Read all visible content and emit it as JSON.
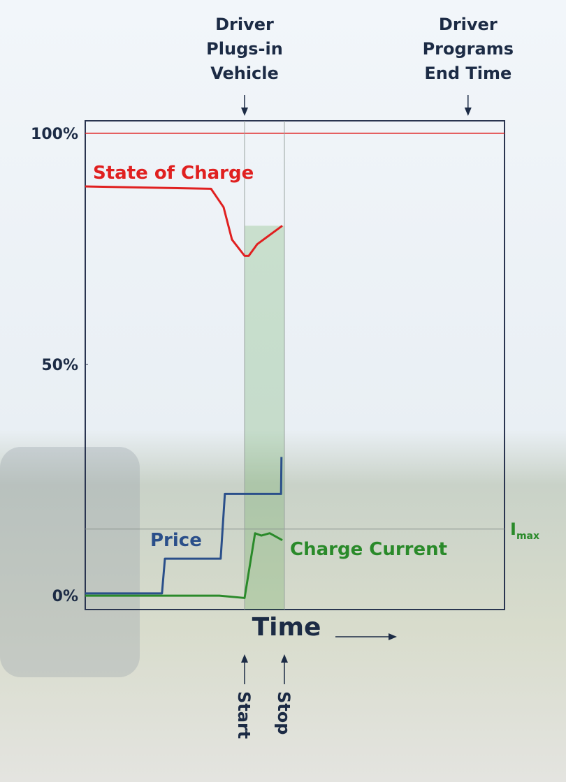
{
  "chart_data": {
    "type": "line",
    "xlim": [
      0,
      100
    ],
    "ylim": [
      -3,
      102.7
    ],
    "yticks": [
      {
        "value": 0,
        "label": "0%"
      },
      {
        "value": 50,
        "label": "50%"
      },
      {
        "value": 100,
        "label": "100%"
      }
    ],
    "reference_line": {
      "value": 100,
      "color": "#e02020"
    },
    "x_label": "Time",
    "series": [
      {
        "name": "State of Charge",
        "color": "#e02020",
        "x": [
          0,
          30,
          33,
          35,
          38,
          39,
          41,
          47
        ],
        "values": [
          88.5,
          88,
          84,
          77,
          73.5,
          73.5,
          76,
          80
        ]
      },
      {
        "name": "Price",
        "color": "#2a4f8a",
        "x": [
          0,
          18.3,
          19,
          32.3,
          33.3,
          46.7,
          46.8
        ],
        "values": [
          0.5,
          0.5,
          8,
          8,
          22,
          22,
          30
        ]
      },
      {
        "name": "Charge Current",
        "color": "#2a8a2a",
        "x": [
          0,
          16,
          32,
          38,
          40.5,
          42,
          44,
          46,
          47
        ],
        "values": [
          0,
          0,
          0,
          -0.5,
          13.5,
          13,
          13.5,
          12.5,
          12
        ]
      }
    ],
    "imax": {
      "label": "I",
      "subscript": "max",
      "value": 14.4
    },
    "top_annotations": [
      {
        "lines": [
          "Driver",
          "Plugs-in",
          "Vehicle"
        ],
        "x": 38
      },
      {
        "lines": [
          "Driver",
          "Programs",
          "End Time"
        ],
        "x": 91.3
      }
    ],
    "bottom_annotations": [
      {
        "label": "Start",
        "x": 38
      },
      {
        "label": "Stop",
        "x": 47.5
      }
    ]
  }
}
